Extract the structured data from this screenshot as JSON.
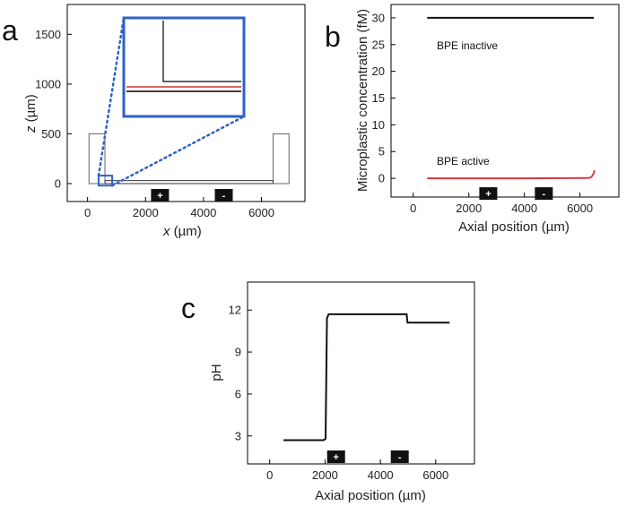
{
  "chart_data": [
    {
      "panel": "a",
      "type": "diagram",
      "xlabel_italic": "x",
      "xlabel_unit": " (µm)",
      "ylabel_italic": "z",
      "ylabel_unit": " (µm)",
      "xlim": [
        -700,
        7500
      ],
      "ylim": [
        -180,
        1800
      ],
      "xticks": [
        0,
        2000,
        4000,
        6000
      ],
      "yticks": [
        0,
        500,
        1000,
        1500
      ],
      "reservoirs": [
        {
          "x0": 50,
          "x1": 600,
          "z0": 0,
          "z1": 500
        },
        {
          "x0": 6400,
          "x1": 6950,
          "z0": 0,
          "z1": 500
        }
      ],
      "channel": {
        "x0": 600,
        "x1": 6400,
        "z0": 0,
        "z1": 30
      },
      "zoom_box": {
        "x0": 380,
        "x1": 850,
        "z0": -20,
        "z1": 80
      },
      "electrodes": [
        {
          "sign": "+",
          "x": 2500
        },
        {
          "sign": "-",
          "x": 4700
        }
      ],
      "colors": {
        "frame": "#000000",
        "zoom": "#2f62c8",
        "red_line": "#d23237"
      }
    },
    {
      "panel": "b",
      "type": "line",
      "xlabel": "Axial position (µm)",
      "ylabel": "Microplastic concentration (fM)",
      "xlim": [
        -800,
        7400
      ],
      "ylim": [
        -3.5,
        32.5
      ],
      "xticks": [
        0,
        2000,
        4000,
        6000
      ],
      "yticks": [
        0,
        5,
        10,
        15,
        20,
        25,
        30
      ],
      "series": [
        {
          "name": "BPE inactive",
          "color": "#111111",
          "x": [
            500,
            6500
          ],
          "y": [
            30,
            30
          ]
        },
        {
          "name": "BPE active",
          "color": "#d63a44",
          "x": [
            500,
            2000,
            4000,
            6300,
            6400,
            6450,
            6500,
            6520
          ],
          "y": [
            0,
            0,
            0,
            0.05,
            0.2,
            0.5,
            1.0,
            1.5
          ]
        }
      ],
      "electrodes": [
        {
          "sign": "+",
          "x": 2700
        },
        {
          "sign": "-",
          "x": 4700
        }
      ]
    },
    {
      "panel": "c",
      "type": "line",
      "xlabel": "Axial position (µm)",
      "ylabel": "pH",
      "xlim": [
        -800,
        7400
      ],
      "ylim": [
        1.0,
        14.0
      ],
      "xticks": [
        0,
        2000,
        4000,
        6000
      ],
      "yticks": [
        3,
        6,
        9,
        12
      ],
      "series": [
        {
          "color": "#111111",
          "x": [
            500,
            1950,
            2020,
            2070,
            2130,
            4900,
            4950,
            4980,
            6500
          ],
          "y": [
            2.7,
            2.7,
            2.8,
            11.4,
            11.7,
            11.7,
            11.7,
            11.1,
            11.1
          ]
        }
      ],
      "electrodes": [
        {
          "sign": "+",
          "x": 2400
        },
        {
          "sign": "-",
          "x": 4700
        }
      ]
    }
  ]
}
